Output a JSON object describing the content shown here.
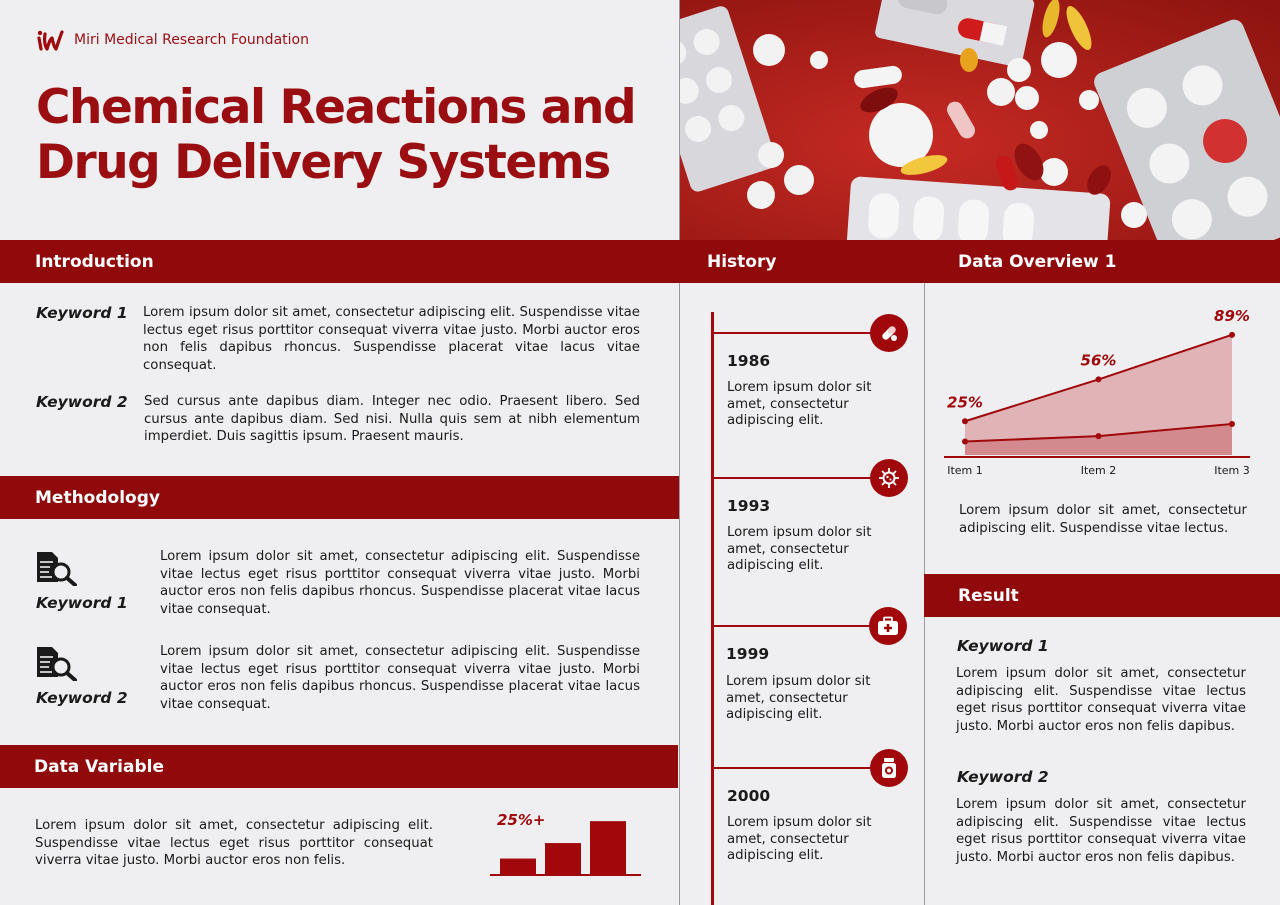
{
  "brand": {
    "name": "Miri Medical Research Foundation",
    "logo": "iw-logo-icon"
  },
  "title": {
    "line1": "Chemical Reactions and",
    "line2": "Drug Delivery Systems"
  },
  "colors": {
    "accent": "#900a0c",
    "background": "#efeff1"
  },
  "introduction": {
    "heading": "Introduction",
    "items": [
      {
        "keyword": "Keyword 1",
        "text": "Lorem ipsum dolor sit amet, consectetur adipiscing elit. Suspendisse vitae lectus eget risus porttitor consequat viverra vitae justo. Morbi auctor eros non felis dapibus rhoncus. Suspendisse placerat vitae lacus vitae consequat."
      },
      {
        "keyword": "Keyword 2",
        "text": "Sed cursus ante dapibus diam. Integer nec odio. Praesent libero. Sed cursus ante dapibus diam. Sed nisi. Nulla quis sem at nibh elementum imperdiet. Duis sagittis ipsum. Praesent mauris."
      }
    ]
  },
  "methodology": {
    "heading": "Methodology",
    "items": [
      {
        "keyword": "Keyword 1",
        "icon": "document-search-icon",
        "text": "Lorem ipsum dolor sit amet, consectetur adipiscing elit. Suspendisse vitae lectus eget risus porttitor consequat viverra vitae justo. Morbi auctor eros non felis dapibus rhoncus. Suspendisse placerat vitae lacus vitae consequat."
      },
      {
        "keyword": "Keyword 2",
        "icon": "document-search-icon",
        "text": "Lorem ipsum dolor sit amet, consectetur adipiscing elit. Suspendisse vitae lectus eget risus porttitor consequat viverra vitae justo. Morbi auctor eros non felis dapibus rhoncus. Suspendisse placerat vitae lacus vitae consequat."
      }
    ]
  },
  "data_variable": {
    "heading": "Data Variable",
    "text": "Lorem ipsum dolor sit amet, consectetur adipiscing elit. Suspendisse vitae lectus eget risus porttitor consequat viverra vitae justo. Morbi auctor eros non felis.",
    "label": "25%+"
  },
  "history": {
    "heading": "History",
    "events": [
      {
        "year": "1986",
        "icon": "pills-icon",
        "text": "Lorem ipsum dolor sit amet, consectetur adipiscing elit."
      },
      {
        "year": "1993",
        "icon": "virus-icon",
        "text": "Lorem ipsum dolor sit amet, consectetur adipiscing elit."
      },
      {
        "year": "1999",
        "icon": "first-aid-kit-icon",
        "text": "Lorem ipsum dolor sit amet, consectetur adipiscing elit."
      },
      {
        "year": "2000",
        "icon": "medicine-bottle-icon",
        "text": "Lorem ipsum dolor sit amet, consectetur adipiscing elit."
      }
    ]
  },
  "data_overview": {
    "heading": "Data Overview 1",
    "text": "Lorem ipsum dolor sit amet, consectetur adipiscing elit. Suspendisse vitae lectus."
  },
  "result": {
    "heading": "Result",
    "items": [
      {
        "keyword": "Keyword 1",
        "text": "Lorem ipsum dolor sit amet, consectetur adipiscing elit. Suspendisse vitae lectus eget risus porttitor consequat viverra vitae justo. Morbi auctor eros non felis dapibus."
      },
      {
        "keyword": "Keyword 2",
        "text": "Lorem ipsum dolor sit amet, consectetur adipiscing elit. Suspendisse vitae lectus eget risus porttitor consequat viverra vitae justo. Morbi auctor eros non felis dapibus."
      }
    ]
  },
  "chart_data": [
    {
      "type": "area",
      "categories": [
        "Item 1",
        "Item 2",
        "Item 3"
      ],
      "series": [
        {
          "values": [
            25,
            56,
            89
          ],
          "labels": [
            "25%",
            "56%",
            "89%"
          ]
        },
        {
          "values": [
            10,
            14,
            23
          ]
        }
      ],
      "ylim": [
        0,
        100
      ],
      "color": "#a0080c"
    },
    {
      "type": "bar",
      "values": [
        12,
        24,
        41
      ],
      "annotation": "25%+",
      "color": "#a0080c"
    }
  ]
}
